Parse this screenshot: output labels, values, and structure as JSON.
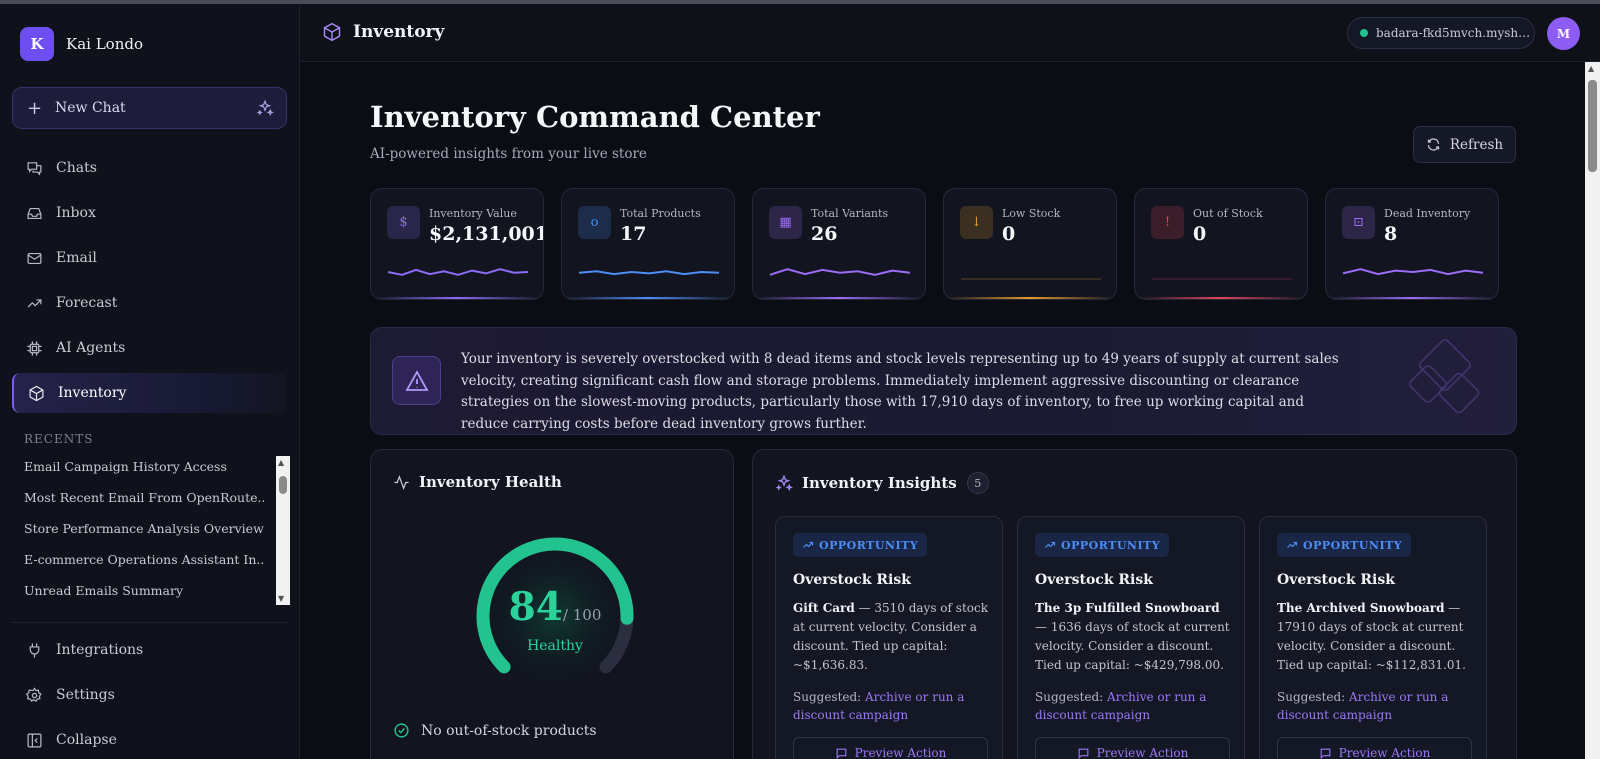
{
  "app": {
    "workspace_initial": "K",
    "workspace_name": "Kai Londo",
    "new_chat_label": "New Chat"
  },
  "sidebar": {
    "items": [
      {
        "label": "Chats",
        "icon": "chats-icon"
      },
      {
        "label": "Inbox",
        "icon": "inbox-icon"
      },
      {
        "label": "Email",
        "icon": "mail-icon"
      },
      {
        "label": "Forecast",
        "icon": "trending-up-icon"
      },
      {
        "label": "AI Agents",
        "icon": "cpu-icon"
      },
      {
        "label": "Inventory",
        "icon": "box-icon",
        "active": true
      }
    ],
    "recents_title": "RECENTS",
    "recents": [
      "Email Campaign History Access",
      "Most Recent Email From OpenRoute...",
      "Store Performance Analysis Overview",
      "E-commerce Operations Assistant In...",
      "Unread Emails Summary"
    ],
    "bottom": [
      {
        "label": "Integrations",
        "icon": "plug-icon"
      },
      {
        "label": "Settings",
        "icon": "gear-icon"
      },
      {
        "label": "Collapse",
        "icon": "collapse-icon"
      }
    ]
  },
  "topbar": {
    "title": "Inventory",
    "store": "badara-fkd5mvch.myshop...",
    "user_initial": "M"
  },
  "page": {
    "title": "Inventory Command Center",
    "subtitle": "AI-powered insights from your live store",
    "refresh_label": "Refresh"
  },
  "kpis": [
    {
      "label": "Inventory Value",
      "value": "$2,131,001",
      "glyph": "$",
      "color": "#8b6cf6",
      "trend": [
        0.5,
        0.3,
        0.65,
        0.35,
        0.55,
        0.3,
        0.6,
        0.4,
        0.7,
        0.45,
        0.5
      ]
    },
    {
      "label": "Total Products",
      "value": "17",
      "glyph": "o",
      "color": "#4d8df5",
      "trend": [
        0.45,
        0.55,
        0.35,
        0.5,
        0.4,
        0.55,
        0.35,
        0.5,
        0.45
      ]
    },
    {
      "label": "Total Variants",
      "value": "26",
      "glyph": "▦",
      "color": "#9b6cf6",
      "trend": [
        0.3,
        0.7,
        0.35,
        0.65,
        0.45,
        0.55,
        0.3,
        0.6,
        0.45
      ]
    },
    {
      "label": "Low Stock",
      "value": "0",
      "glyph": "↓",
      "color": "#e39a2b",
      "trend": [
        0,
        0,
        0,
        0,
        0,
        0,
        0,
        0,
        0
      ]
    },
    {
      "label": "Out of Stock",
      "value": "0",
      "glyph": "!",
      "color": "#e0445c",
      "trend": [
        0,
        0,
        0,
        0,
        0,
        0,
        0,
        0,
        0
      ]
    },
    {
      "label": "Dead Inventory",
      "value": "8",
      "glyph": "⊡",
      "color": "#9b6cf6",
      "trend": [
        0.4,
        0.7,
        0.35,
        0.6,
        0.5,
        0.65,
        0.35,
        0.6,
        0.45
      ]
    }
  ],
  "alert": {
    "text": "Your inventory is severely overstocked with 8 dead items and stock levels representing up to 49 years of supply at current sales velocity, creating significant cash flow and storage problems. Immediately implement aggressive discounting or clearance strategies on the slowest-moving products, particularly those with 17,910 days of inventory, to free up working capital and reduce carrying costs before dead inventory grows further."
  },
  "health": {
    "title": "Inventory Health",
    "score": "84",
    "max": "/ 100",
    "score_fraction": 0.84,
    "status": "Healthy",
    "checks": [
      "No out-of-stock products"
    ]
  },
  "insights": {
    "title": "Inventory Insights",
    "count": "5",
    "cards": [
      {
        "tag": "OPPORTUNITY",
        "title": "Overstock Risk",
        "product": "Gift Card",
        "desc": " — 3510 days of stock at current velocity. Consider a discount. Tied up capital: ~$1,636.83.",
        "suggested_label": "Suggested: ",
        "suggested": "Archive or run a discount campaign",
        "action": "Preview Action"
      },
      {
        "tag": "OPPORTUNITY",
        "title": "Overstock Risk",
        "product": "The 3p Fulfilled Snowboard",
        "desc": " — 1636 days of stock at current velocity. Consider a discount. Tied up capital: ~$429,798.00.",
        "suggested_label": "Suggested: ",
        "suggested": "Archive or run a discount campaign",
        "action": "Preview Action"
      },
      {
        "tag": "OPPORTUNITY",
        "title": "Overstock Risk",
        "product": "The Archived Snowboard",
        "desc": " — 17910 days of stock at current velocity. Consider a discount. Tied up capital: ~$112,831.01.",
        "suggested_label": "Suggested: ",
        "suggested": "Archive or run a discount campaign",
        "action": "Preview Action"
      }
    ]
  }
}
